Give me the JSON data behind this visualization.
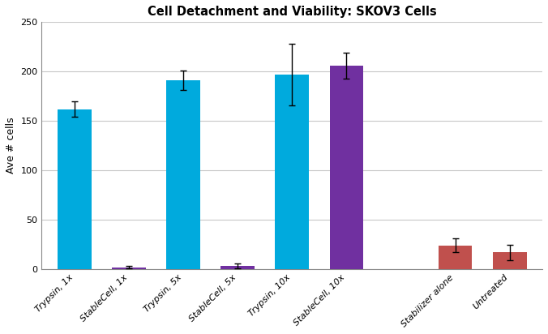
{
  "title": "Cell Detachment and Viability: SKOV3 Cells",
  "ylabel": "Ave # cells",
  "categories": [
    "Trypsin, 1x",
    "StableCell, 1x",
    "Trypsin, 5x",
    "StableCell, 5x",
    "Trypsin, 10x",
    "StableCell, 10x",
    "Stabilizer alone",
    "Untreated"
  ],
  "values": [
    162,
    2,
    191,
    3,
    197,
    206,
    24,
    17
  ],
  "errors": [
    8,
    1.0,
    10,
    2.5,
    31,
    13,
    7,
    8
  ],
  "colors": [
    "#00AADD",
    "#7030A0",
    "#00AADD",
    "#7030A0",
    "#00AADD",
    "#7030A0",
    "#C0504D",
    "#C0504D"
  ],
  "ylim": [
    0,
    250
  ],
  "yticks": [
    0,
    50,
    100,
    150,
    200,
    250
  ],
  "bar_width": 0.62,
  "figsize": [
    6.76,
    4.12
  ],
  "dpi": 100,
  "title_fontsize": 10.5,
  "label_fontsize": 9,
  "tick_fontsize": 8,
  "background_color": "#FFFFFF",
  "grid_color": "#C8C8C8",
  "x_positions": [
    0,
    1,
    2,
    3,
    4,
    5,
    7,
    8
  ]
}
